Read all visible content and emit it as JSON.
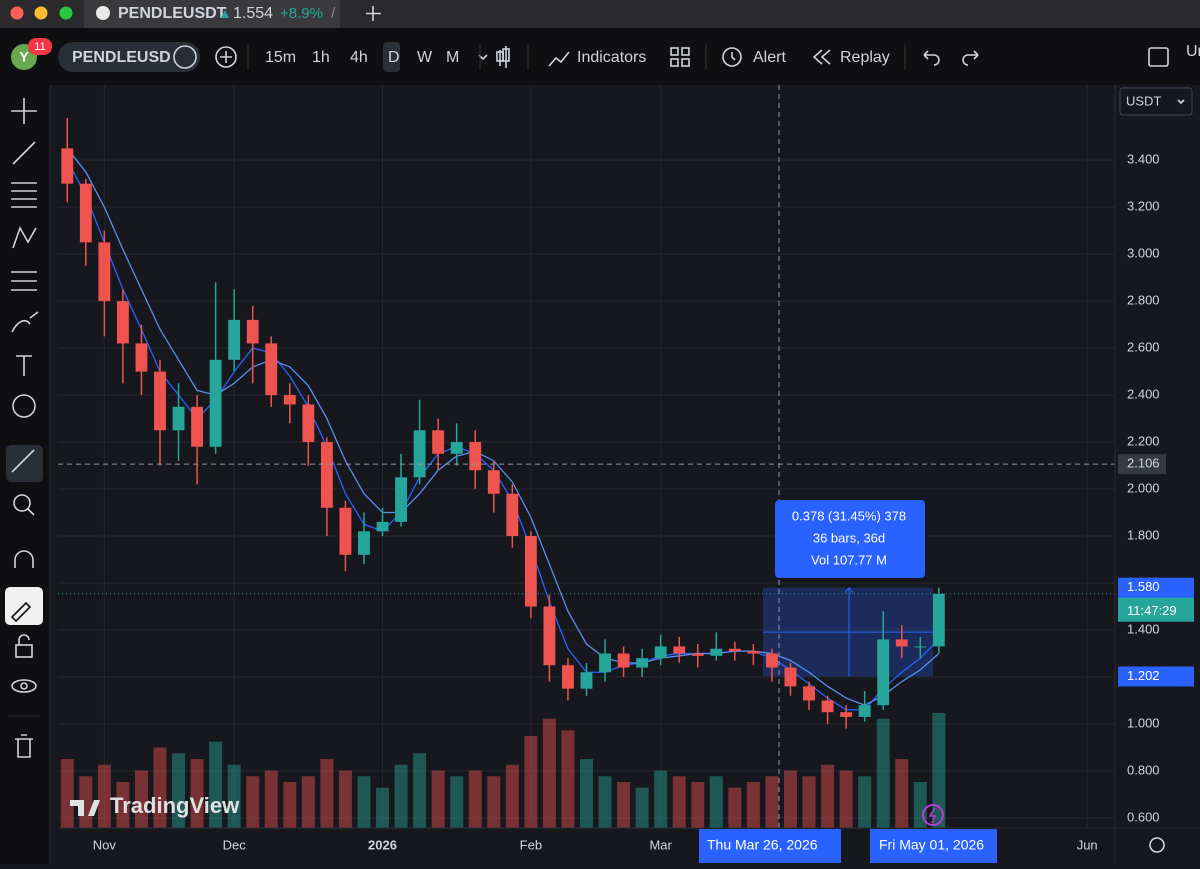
{
  "ui": {
    "avatar": "Y",
    "badge": "11",
    "tab_symbol": "PENDLEUSDT",
    "tab_price": "1.554",
    "tab_change": "+8.9%",
    "tab_sep": "/",
    "symbol": "PENDLEUSD",
    "intervals": [
      "15m",
      "1h",
      "4h",
      "D",
      "W",
      "M"
    ],
    "indicators": "Indicators",
    "alert": "Alert",
    "replay": "Replay",
    "cut": "Ur",
    "currency": "USDT",
    "watermark": "TradingView",
    "countdown": "11:47:29"
  },
  "chart_data": {
    "type": "candlestick",
    "categories": [
      null,
      null,
      "Nov",
      null,
      null,
      null,
      null,
      null,
      null,
      "Dec",
      null,
      null,
      null,
      null,
      null,
      null,
      null,
      "2026",
      null,
      null,
      null,
      null,
      null,
      null,
      null,
      "Feb",
      null,
      null,
      null,
      null,
      null,
      null,
      "Mar",
      null,
      null,
      null,
      null,
      null,
      null,
      null,
      null,
      null,
      null,
      null,
      null,
      null,
      null,
      null,
      null,
      null,
      null,
      null,
      null,
      null,
      null,
      "Jun",
      null
    ],
    "open": [
      3.45,
      3.3,
      3.05,
      2.8,
      2.62,
      2.5,
      2.25,
      2.35,
      2.18,
      2.55,
      2.72,
      2.62,
      2.4,
      2.36,
      2.2,
      1.92,
      1.72,
      1.82,
      1.86,
      2.05,
      2.25,
      2.15,
      2.2,
      2.08,
      1.98,
      1.8,
      1.5,
      1.25,
      1.15,
      1.22,
      1.3,
      1.24,
      1.28,
      1.33,
      1.3,
      1.29,
      1.32,
      1.31,
      1.3,
      1.24,
      1.16,
      1.1,
      1.05,
      1.03,
      1.08,
      1.36,
      1.33,
      1.33,
      null,
      null,
      null,
      null,
      null,
      null,
      null,
      null,
      null
    ],
    "high": [
      3.58,
      3.32,
      3.1,
      2.85,
      2.7,
      2.55,
      2.45,
      2.4,
      2.88,
      2.85,
      2.78,
      2.65,
      2.45,
      2.4,
      2.22,
      1.95,
      1.9,
      1.92,
      2.15,
      2.38,
      2.3,
      2.28,
      2.25,
      2.12,
      2.02,
      1.82,
      1.55,
      1.28,
      1.26,
      1.36,
      1.33,
      1.32,
      1.38,
      1.37,
      1.34,
      1.39,
      1.35,
      1.34,
      1.32,
      1.26,
      1.18,
      1.12,
      1.08,
      1.14,
      1.48,
      1.42,
      1.37,
      1.58,
      null,
      null,
      null,
      null,
      null,
      null,
      null,
      null,
      null
    ],
    "low": [
      3.22,
      2.95,
      2.65,
      2.45,
      2.4,
      2.1,
      2.12,
      2.02,
      2.15,
      2.5,
      2.45,
      2.35,
      2.28,
      2.1,
      1.8,
      1.65,
      1.68,
      1.8,
      1.84,
      2.02,
      2.08,
      2.1,
      2.0,
      1.9,
      1.75,
      1.45,
      1.18,
      1.1,
      1.12,
      1.18,
      1.2,
      1.2,
      1.25,
      1.26,
      1.24,
      1.27,
      1.27,
      1.25,
      1.18,
      1.12,
      1.06,
      1.0,
      0.98,
      1.01,
      1.06,
      1.28,
      1.28,
      1.3,
      null,
      null,
      null,
      null,
      null,
      null,
      null,
      null,
      null
    ],
    "close": [
      3.3,
      3.05,
      2.8,
      2.62,
      2.5,
      2.25,
      2.35,
      2.18,
      2.55,
      2.72,
      2.62,
      2.4,
      2.36,
      2.2,
      1.92,
      1.72,
      1.82,
      1.86,
      2.05,
      2.25,
      2.15,
      2.2,
      2.08,
      1.98,
      1.8,
      1.5,
      1.25,
      1.15,
      1.22,
      1.3,
      1.24,
      1.28,
      1.33,
      1.3,
      1.29,
      1.32,
      1.31,
      1.3,
      1.24,
      1.16,
      1.1,
      1.05,
      1.03,
      1.08,
      1.36,
      1.33,
      1.33,
      1.554,
      null,
      null,
      null,
      null,
      null,
      null,
      null,
      null,
      null
    ],
    "volume": [
      60,
      45,
      55,
      40,
      50,
      70,
      65,
      60,
      75,
      55,
      45,
      50,
      40,
      45,
      60,
      50,
      45,
      35,
      55,
      65,
      50,
      45,
      50,
      45,
      55,
      80,
      95,
      85,
      60,
      45,
      40,
      35,
      50,
      45,
      40,
      45,
      35,
      40,
      45,
      50,
      45,
      55,
      50,
      45,
      95,
      60,
      40,
      100,
      null,
      null,
      null,
      null,
      null,
      null,
      null,
      null,
      null
    ],
    "ma_lines": [
      {
        "color": "#2962ff",
        "values": [
          3.4,
          3.25,
          3.05,
          2.85,
          2.68,
          2.5,
          2.4,
          2.3,
          2.38,
          2.5,
          2.6,
          2.58,
          2.48,
          2.35,
          2.18,
          1.98,
          1.85,
          1.82,
          1.9,
          2.05,
          2.15,
          2.18,
          2.15,
          2.08,
          1.95,
          1.75,
          1.52,
          1.32,
          1.22,
          1.22,
          1.25,
          1.26,
          1.29,
          1.3,
          1.3,
          1.3,
          1.31,
          1.31,
          1.28,
          1.23,
          1.17,
          1.11,
          1.06,
          1.06,
          1.15,
          1.22,
          1.28,
          1.36,
          null,
          null,
          null,
          null,
          null,
          null,
          null,
          null,
          null
        ]
      },
      {
        "color": "#5b8def",
        "values": [
          3.45,
          3.35,
          3.2,
          3.02,
          2.85,
          2.68,
          2.55,
          2.42,
          2.4,
          2.45,
          2.52,
          2.55,
          2.52,
          2.44,
          2.3,
          2.12,
          1.98,
          1.9,
          1.9,
          1.98,
          2.08,
          2.14,
          2.16,
          2.12,
          2.03,
          1.88,
          1.68,
          1.48,
          1.34,
          1.28,
          1.26,
          1.26,
          1.28,
          1.29,
          1.3,
          1.3,
          1.31,
          1.31,
          1.3,
          1.27,
          1.22,
          1.16,
          1.11,
          1.08,
          1.12,
          1.18,
          1.23,
          1.3,
          null,
          null,
          null,
          null,
          null,
          null,
          null,
          null,
          null
        ]
      }
    ],
    "up_color": "#26a69a",
    "down_color": "#ef5350",
    "ylim": [
      0.557,
      3.72
    ],
    "yticks": [
      {
        "value": 0.6,
        "label": "0.600"
      },
      {
        "value": 0.8,
        "label": "0.800"
      },
      {
        "value": 1.0,
        "label": "1.000"
      },
      {
        "value": 1.2,
        "label": "1.200"
      },
      {
        "value": 1.4,
        "label": "1.400"
      },
      {
        "value": 1.6,
        "label": "1.600"
      },
      {
        "value": 1.8,
        "label": "1.800"
      },
      {
        "value": 2.0,
        "label": "2.000"
      },
      {
        "value": 2.2,
        "label": "2.200"
      },
      {
        "value": 2.4,
        "label": "2.400"
      },
      {
        "value": 2.6,
        "label": "2.600"
      },
      {
        "value": 2.8,
        "label": "2.800"
      },
      {
        "value": 3.0,
        "label": "3.000"
      },
      {
        "value": 3.2,
        "label": "3.200"
      },
      {
        "value": 3.4,
        "label": "3.400"
      }
    ],
    "grid": true,
    "crosshair": {
      "price": {
        "value": 2.106,
        "label": "2.106"
      },
      "date": "Thu Mar 26, 2026"
    },
    "measure": {
      "top": {
        "value": 1.58,
        "label": "1.580"
      },
      "bottom": {
        "value": 1.202,
        "label": "1.202"
      },
      "end_date": "Fri May 01, 2026",
      "lines": [
        "0.378 (31.45%) 378",
        "36 bars, 36d",
        "Vol 107.77 M"
      ]
    }
  }
}
